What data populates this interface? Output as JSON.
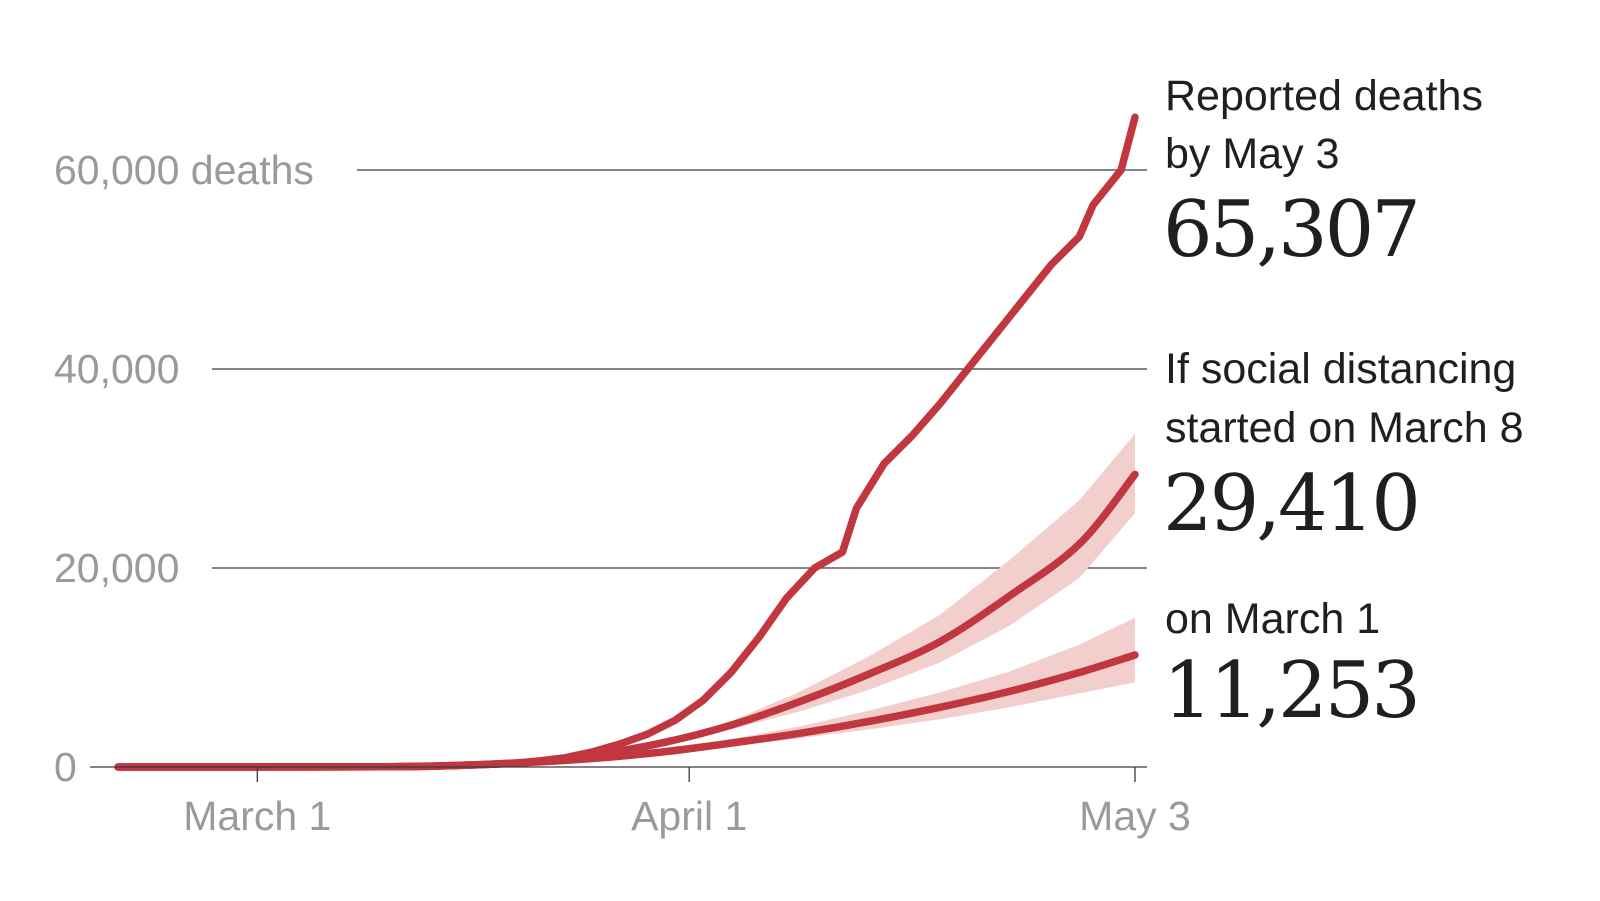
{
  "chart_data": {
    "type": "line",
    "title": "",
    "xlabel": "",
    "ylabel": "",
    "x_start": "Feb 20",
    "x_end": "May 3",
    "x_ticks": [
      "March 1",
      "April 1",
      "May 3"
    ],
    "y_ticks": [
      {
        "value": 0,
        "label": "0"
      },
      {
        "value": 20000,
        "label": "20,000"
      },
      {
        "value": 40000,
        "label": "40,000"
      },
      {
        "value": 60000,
        "label": "60,000 deaths"
      }
    ],
    "ylim": [
      0,
      66000
    ],
    "grid": true,
    "colors": {
      "line": "#c1373f",
      "band": "#f2cfcd",
      "grid": "#3a3a3a",
      "tick": "#9a9a9a",
      "annotation": "#1f1f1f"
    },
    "series": [
      {
        "x": [
          "Feb 20",
          "Mar 1",
          "Mar 10",
          "Mar 15",
          "Mar 20",
          "Mar 23",
          "Mar 25",
          "Mar 27",
          "Mar 29",
          "Mar 31",
          "Apr 2",
          "Apr 4",
          "Apr 6",
          "Apr 8",
          "Apr 10",
          "Apr 12",
          "Apr 13",
          "Apr 15",
          "Apr 17",
          "Apr 19",
          "Apr 21",
          "Apr 23",
          "Apr 25",
          "Apr 27",
          "Apr 29",
          "Apr 30",
          "May 2",
          "May 3"
        ],
        "values": [
          0,
          0,
          30,
          120,
          400,
          900,
          1500,
          2300,
          3300,
          4700,
          6700,
          9500,
          13000,
          17000,
          20000,
          21600,
          26000,
          30500,
          33300,
          36500,
          40000,
          43500,
          47000,
          50500,
          53300,
          56500,
          60000,
          65307
        ]
      },
      {
        "x": [
          "Feb 20",
          "Mar 10",
          "Mar 15",
          "Mar 20",
          "Mar 25",
          "Mar 30",
          "Apr 4",
          "Apr 9",
          "Apr 14",
          "Apr 19",
          "Apr 24",
          "Apr 29",
          "May 3"
        ],
        "values": [
          0,
          30,
          150,
          450,
          1200,
          2400,
          4200,
          6600,
          9400,
          12600,
          17200,
          22400,
          29410
        ],
        "lower": [
          0,
          30,
          150,
          450,
          1150,
          2250,
          3800,
          5600,
          7800,
          10500,
          14200,
          19000,
          25500
        ],
        "upper": [
          0,
          30,
          150,
          450,
          1250,
          2550,
          4600,
          7600,
          11200,
          15300,
          20800,
          26800,
          33500
        ]
      },
      {
        "x": [
          "Feb 20",
          "Mar 10",
          "Mar 15",
          "Mar 20",
          "Mar 25",
          "Mar 30",
          "Apr 4",
          "Apr 9",
          "Apr 14",
          "Apr 19",
          "Apr 24",
          "Apr 29",
          "May 3"
        ],
        "values": [
          0,
          30,
          150,
          420,
          850,
          1500,
          2400,
          3400,
          4600,
          6000,
          7600,
          9500,
          11253
        ],
        "lower": [
          0,
          30,
          150,
          400,
          800,
          1350,
          2100,
          2900,
          3800,
          4800,
          6000,
          7400,
          8500
        ],
        "upper": [
          0,
          30,
          150,
          440,
          900,
          1650,
          2800,
          4100,
          5700,
          7500,
          9600,
          12300,
          15000
        ]
      }
    ]
  },
  "annotations": {
    "reported": {
      "line1": "Reported deaths",
      "line2": "by May 3",
      "value": "65,307"
    },
    "march8": {
      "line1": "If social distancing",
      "line2": "started on March 8",
      "value": "29,410"
    },
    "march1": {
      "line1": "on March 1",
      "value": "11,253"
    }
  }
}
